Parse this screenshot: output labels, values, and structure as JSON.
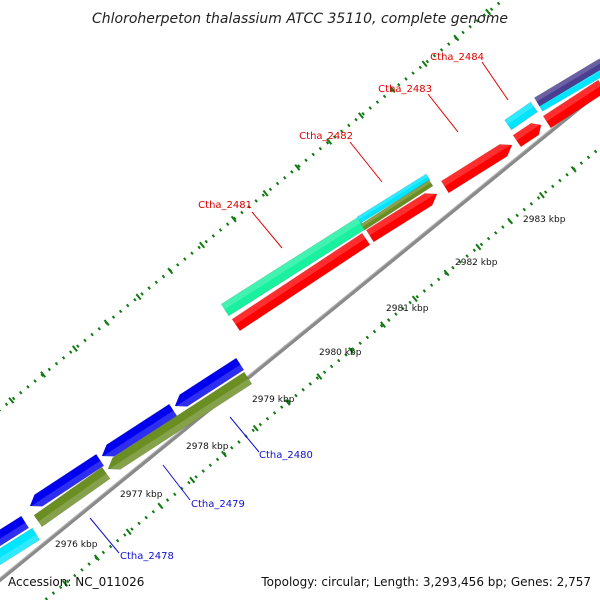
{
  "title": "Chloroherpeton thalassium ATCC 35110, complete genome",
  "footer": {
    "accession": "Accession: NC_011026",
    "summary": "Topology: circular; Length: 3,293,456 bp; Genes: 2,757"
  },
  "colors": {
    "forward_cds": "#ff0000",
    "reverse_cds": "#0000ee",
    "rna_cyan": "#00e5ff",
    "mint": "#19f0a0",
    "olive": "#6b8e23",
    "navy": "#4b3d8f",
    "backbone": "#808080",
    "tick": "#127a12",
    "label_forward": "#e00000",
    "label_reverse": "#1010d0"
  },
  "kbp_ticks": [
    "2976 kbp",
    "2977 kbp",
    "2978 kbp",
    "2979 kbp",
    "2980 kbp",
    "2981 kbp",
    "2982 kbp",
    "2983 kbp"
  ],
  "gene_labels_forward": [
    "Ctha_2481",
    "Ctha_2482",
    "Ctha_2483",
    "Ctha_2484"
  ],
  "gene_labels_reverse": [
    "Ctha_2478",
    "Ctha_2479",
    "Ctha_2480"
  ]
}
